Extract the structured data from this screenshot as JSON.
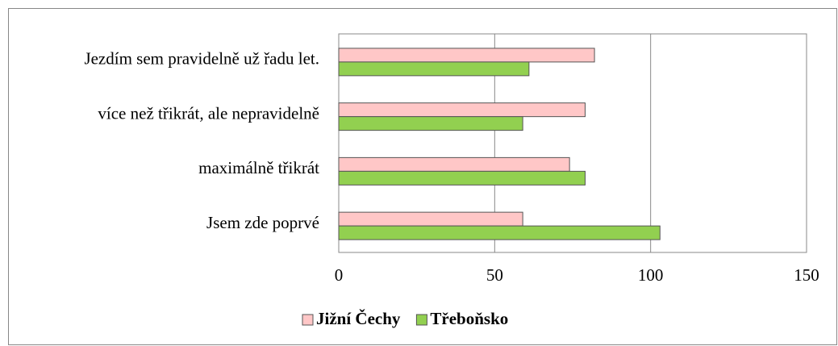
{
  "chart_data": {
    "type": "barh",
    "categories": [
      "Jezdím sem pravidelně už řadu let.",
      "více než třikrát, ale nepravidelně",
      "maximálně třikrát",
      "Jsem zde poprvé"
    ],
    "series": [
      {
        "name": "Jižní Čechy",
        "color": "#ffc7c7",
        "values": [
          82,
          79,
          74,
          59
        ]
      },
      {
        "name": "Třeboňsko",
        "color": "#92d050",
        "values": [
          61,
          59,
          79,
          103
        ]
      }
    ],
    "xlim": [
      0,
      150
    ],
    "xticks": [
      0,
      50,
      100,
      150
    ],
    "grid": true,
    "legend": "bottom"
  }
}
